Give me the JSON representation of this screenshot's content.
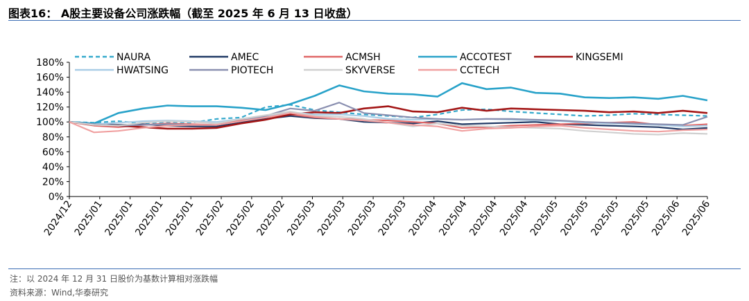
{
  "header": {
    "title": "图表16：  A股主要设备公司涨跌幅（截至 2025 年 6 月 13 日收盘）"
  },
  "footer": {
    "note": "注：以 2024 年 12 月 31 日股价为基数计算相对涨跌幅",
    "source": "资料来源：Wind,华泰研究"
  },
  "chart_data": {
    "type": "line",
    "ylim": [
      0,
      180
    ],
    "yticks": [
      0,
      20,
      40,
      60,
      80,
      100,
      120,
      140,
      160,
      180
    ],
    "ytick_labels": [
      "0%",
      "20%",
      "40%",
      "60%",
      "80%",
      "100%",
      "120%",
      "140%",
      "160%",
      "180%"
    ],
    "x_tick_labels": [
      "2024/12",
      "2025/01",
      "2025/01",
      "2025/01",
      "2025/01",
      "2025/02",
      "2025/02",
      "2025/02",
      "2025/03",
      "2025/03",
      "2025/03",
      "2025/03",
      "2025/04",
      "2025/04",
      "2025/04",
      "2025/04",
      "2025/05",
      "2025/05",
      "2025/05",
      "2025/05",
      "2025/06",
      "2025/06"
    ],
    "grid": false,
    "legend_position": "top",
    "series": [
      {
        "name": "NAURA",
        "color": "#35a9cc",
        "dash": true,
        "values": [
          100,
          99,
          101,
          98,
          100,
          99,
          104,
          106,
          120,
          123,
          116,
          113,
          110,
          108,
          106,
          110,
          116,
          117,
          114,
          112,
          110,
          108,
          109,
          111,
          110,
          109,
          108
        ]
      },
      {
        "name": "AMEC",
        "color": "#1f3864",
        "dash": false,
        "values": [
          100,
          97,
          96,
          97,
          95,
          94,
          94,
          100,
          104,
          108,
          105,
          104,
          100,
          99,
          98,
          101,
          97,
          98,
          99,
          100,
          97,
          96,
          95,
          94,
          93,
          90,
          92
        ]
      },
      {
        "name": "ACMSH",
        "color": "#e06666",
        "dash": false,
        "values": [
          100,
          95,
          93,
          96,
          98,
          97,
          96,
          103,
          106,
          110,
          106,
          104,
          103,
          102,
          100,
          98,
          92,
          93,
          95,
          96,
          97,
          98,
          99,
          100,
          96,
          95,
          97
        ]
      },
      {
        "name": "ACCOTEST",
        "color": "#28a2c9",
        "dash": false,
        "values": [
          100,
          98,
          112,
          118,
          122,
          121,
          121,
          119,
          116,
          124,
          135,
          149,
          141,
          138,
          137,
          134,
          152,
          144,
          146,
          139,
          138,
          133,
          132,
          133,
          131,
          135,
          129
        ]
      },
      {
        "name": "KINGSEMI",
        "color": "#a31515",
        "dash": false,
        "values": [
          100,
          96,
          95,
          93,
          91,
          91,
          92,
          98,
          103,
          110,
          113,
          112,
          118,
          121,
          114,
          113,
          119,
          115,
          118,
          117,
          116,
          115,
          113,
          114,
          112,
          115,
          112
        ]
      },
      {
        "name": "HWATSING",
        "color": "#a9cde6",
        "dash": false,
        "values": [
          100,
          97,
          99,
          101,
          102,
          101,
          100,
          104,
          108,
          113,
          110,
          110,
          108,
          104,
          103,
          104,
          103,
          104,
          103,
          102,
          101,
          99,
          98,
          97,
          96,
          94,
          95
        ]
      },
      {
        "name": "PIOTECH",
        "color": "#8a8fb0",
        "dash": false,
        "values": [
          100,
          97,
          95,
          96,
          97,
          96,
          96,
          101,
          108,
          118,
          115,
          126,
          112,
          109,
          106,
          104,
          103,
          104,
          104,
          103,
          102,
          100,
          99,
          98,
          97,
          96,
          107
        ]
      },
      {
        "name": "SKYVERSE",
        "color": "#d0d0d0",
        "dash": false,
        "values": [
          100,
          96,
          95,
          99,
          101,
          100,
          98,
          104,
          109,
          114,
          108,
          107,
          104,
          99,
          94,
          98,
          95,
          94,
          93,
          92,
          91,
          88,
          86,
          84,
          83,
          85,
          84
        ]
      },
      {
        "name": "CCTECH",
        "color": "#f0a0a0",
        "dash": false,
        "values": [
          100,
          86,
          88,
          92,
          95,
          96,
          96,
          101,
          106,
          112,
          107,
          104,
          102,
          99,
          96,
          94,
          88,
          91,
          92,
          94,
          95,
          92,
          90,
          88,
          87,
          89,
          90
        ]
      }
    ]
  }
}
